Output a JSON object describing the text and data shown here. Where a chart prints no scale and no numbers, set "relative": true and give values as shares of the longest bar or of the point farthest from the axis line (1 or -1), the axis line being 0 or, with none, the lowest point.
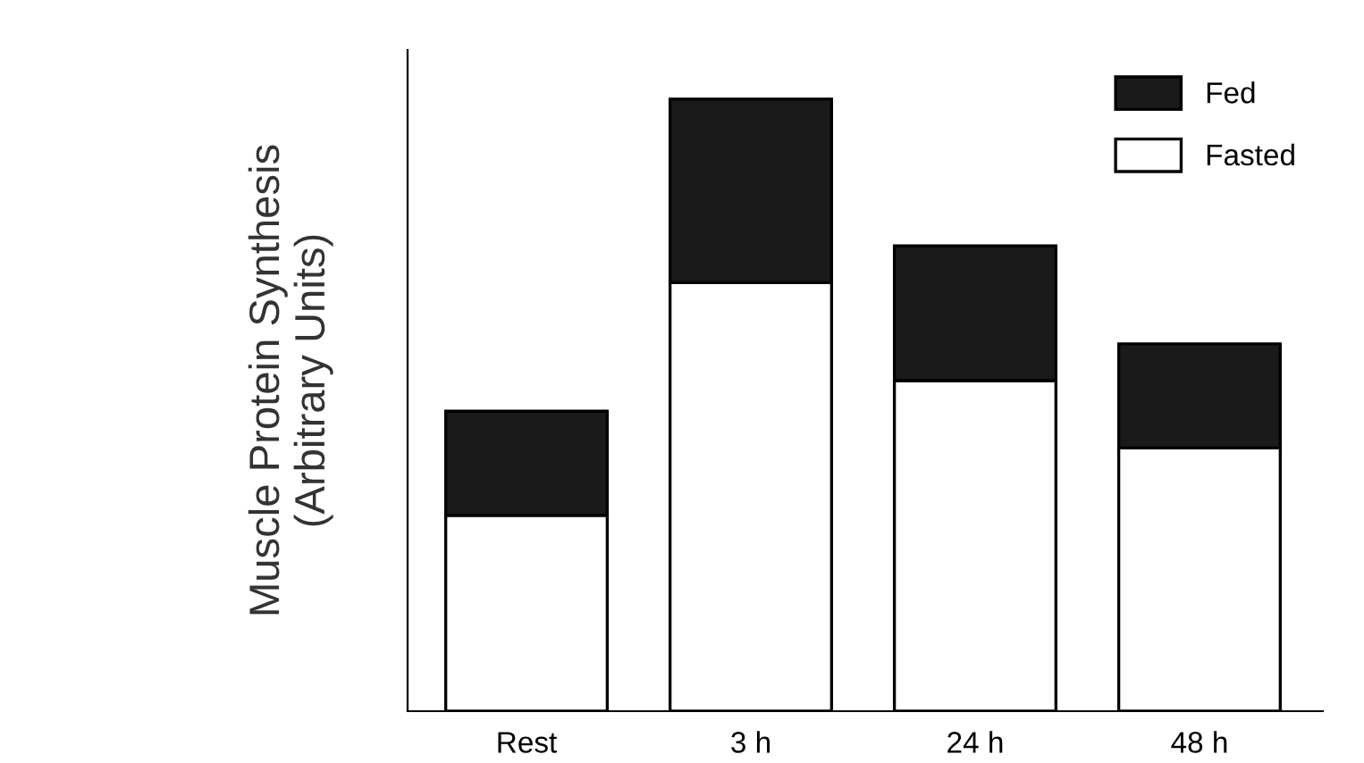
{
  "chart_data": {
    "type": "bar",
    "stacked": true,
    "relative": true,
    "ylabel": "Muscle Protein Synthesis\n(Arbitrary Units)",
    "categories": [
      "Rest",
      "3 h",
      "24 h",
      "48 h"
    ],
    "series": [
      {
        "name": "Fasted",
        "color": "#ffffff",
        "values": [
          0.32,
          0.7,
          0.54,
          0.43
        ]
      },
      {
        "name": "Fed",
        "color": "#1a1a1a",
        "values": [
          0.17,
          0.3,
          0.22,
          0.17
        ]
      }
    ],
    "legend": "top right",
    "grid": false
  }
}
